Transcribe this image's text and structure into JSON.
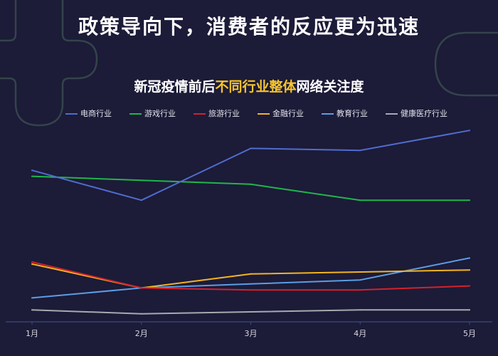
{
  "title": "政策导向下，消费者的反应更为迅速",
  "colors": {
    "background": "#1c1b38",
    "highlight": "#f7c52b",
    "axis": "#3c4a85",
    "decoration": "#33444a",
    "tick_label": "#d8d8e2"
  },
  "chart_data": {
    "type": "line",
    "title": [
      "新冠疫情前后",
      "不同行业整体",
      "网络关注度"
    ],
    "title_highlight_index": 1,
    "categories": [
      "1月",
      "2月",
      "3月",
      "4月",
      "5月"
    ],
    "series": [
      {
        "name": "电商行业",
        "color": "#4f6dcf",
        "values": [
          76,
          61,
          87,
          86,
          96
        ]
      },
      {
        "name": "游戏行业",
        "color": "#1fb64c",
        "values": [
          73,
          71,
          69,
          61,
          61
        ]
      },
      {
        "name": "旅游行业",
        "color": "#d3222d",
        "values": [
          30,
          17,
          16,
          16,
          18
        ]
      },
      {
        "name": "金融行业",
        "color": "#f3b51f",
        "values": [
          29,
          17,
          24,
          25,
          26
        ]
      },
      {
        "name": "教育行业",
        "color": "#5b9de3",
        "values": [
          12,
          17,
          19,
          21,
          32
        ]
      },
      {
        "name": "健康医疗行业",
        "color": "#a9a9b0",
        "values": [
          6,
          4,
          5,
          6,
          6
        ]
      }
    ],
    "xlabel": "",
    "ylabel": "",
    "ylim": [
      0,
      100
    ],
    "grid": false,
    "legend": "top"
  }
}
